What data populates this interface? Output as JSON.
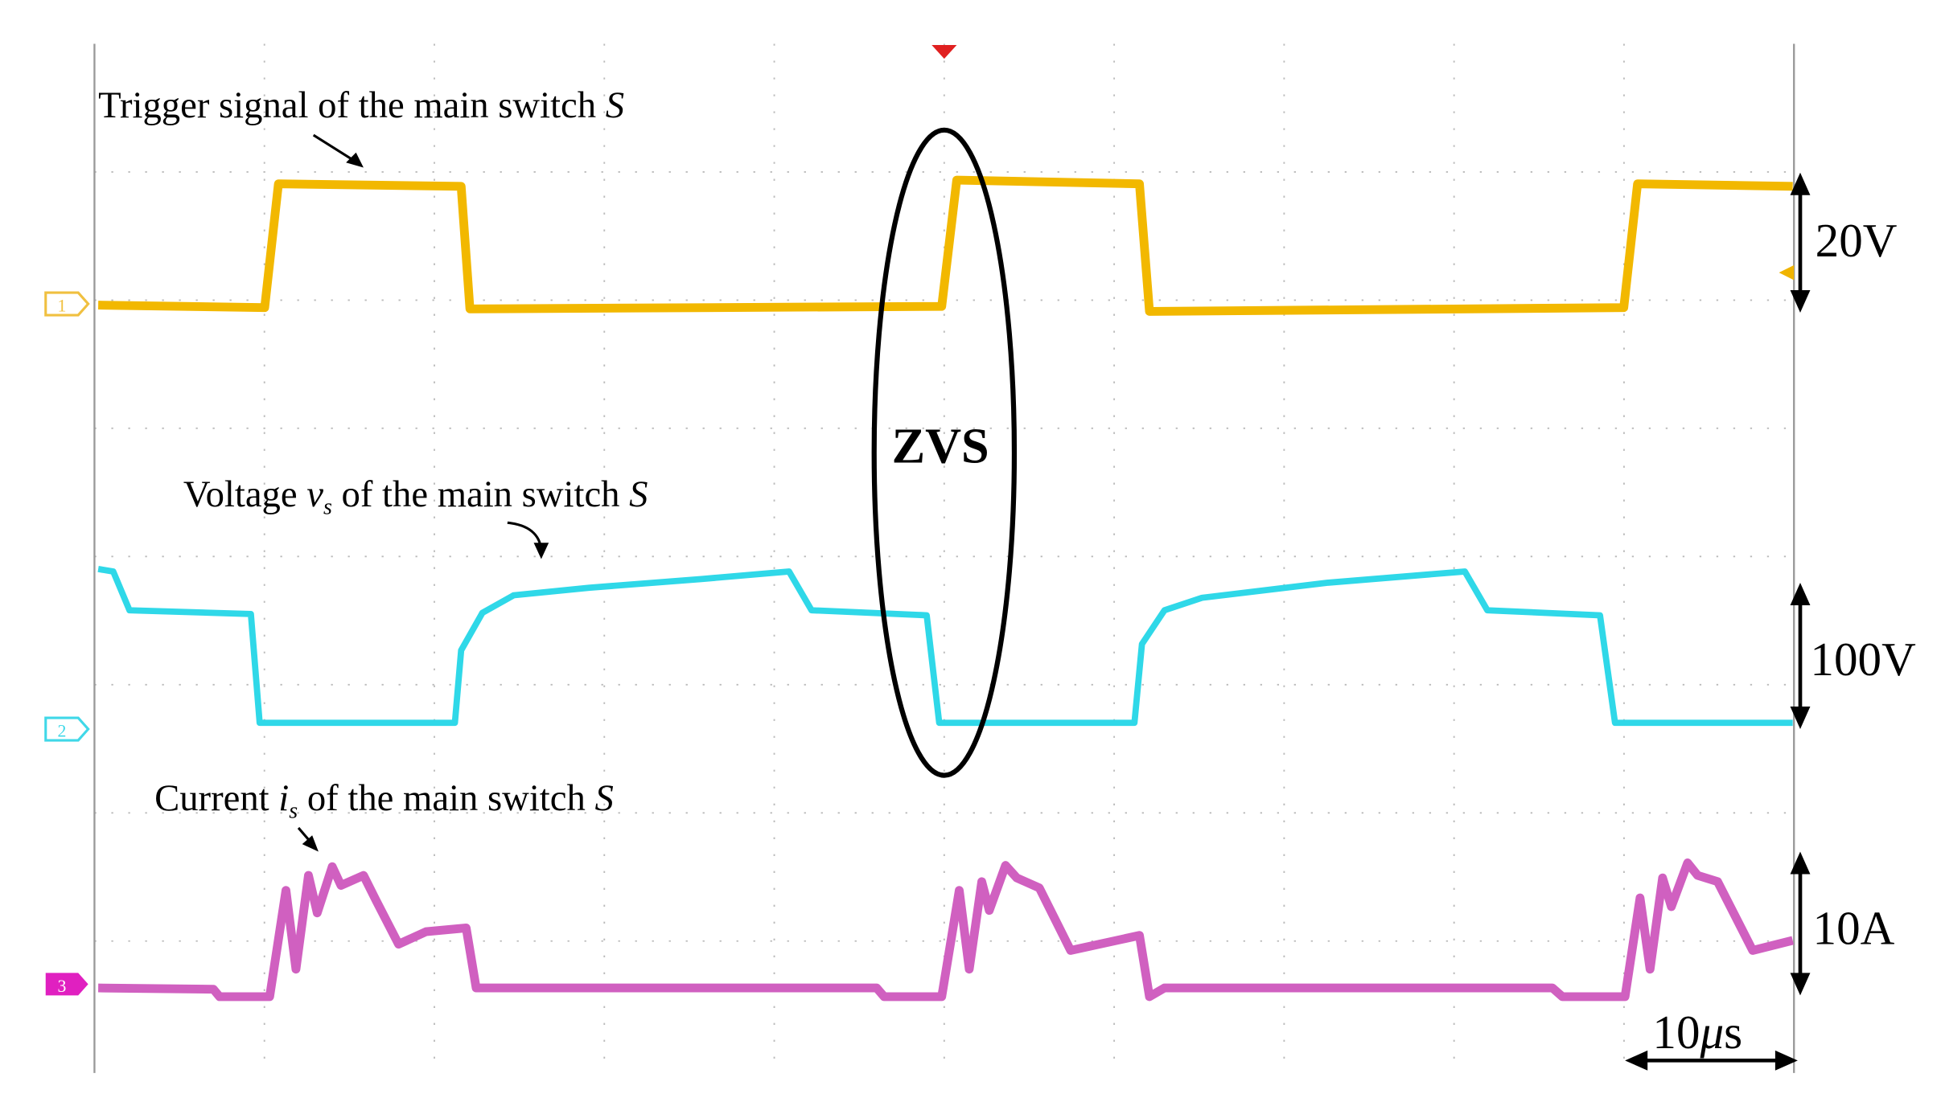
{
  "annotations": {
    "trigger": {
      "text": "Trigger signal of the main switch ",
      "var": "S"
    },
    "voltage": {
      "pre": "Voltage ",
      "var": "v",
      "sub": "s",
      "post": " of the main switch ",
      "var2": "S"
    },
    "current": {
      "pre": "Current ",
      "var": "i",
      "sub": "s",
      "post": " of the main switch ",
      "var2": "S"
    },
    "zvs": "ZVS"
  },
  "scales": {
    "ch1": "20V",
    "ch2": "100V",
    "ch3": "10A",
    "time": {
      "num": "10",
      "unit_prefix": "μ",
      "unit": "s"
    }
  },
  "channels": [
    "1",
    "2",
    "3"
  ]
}
